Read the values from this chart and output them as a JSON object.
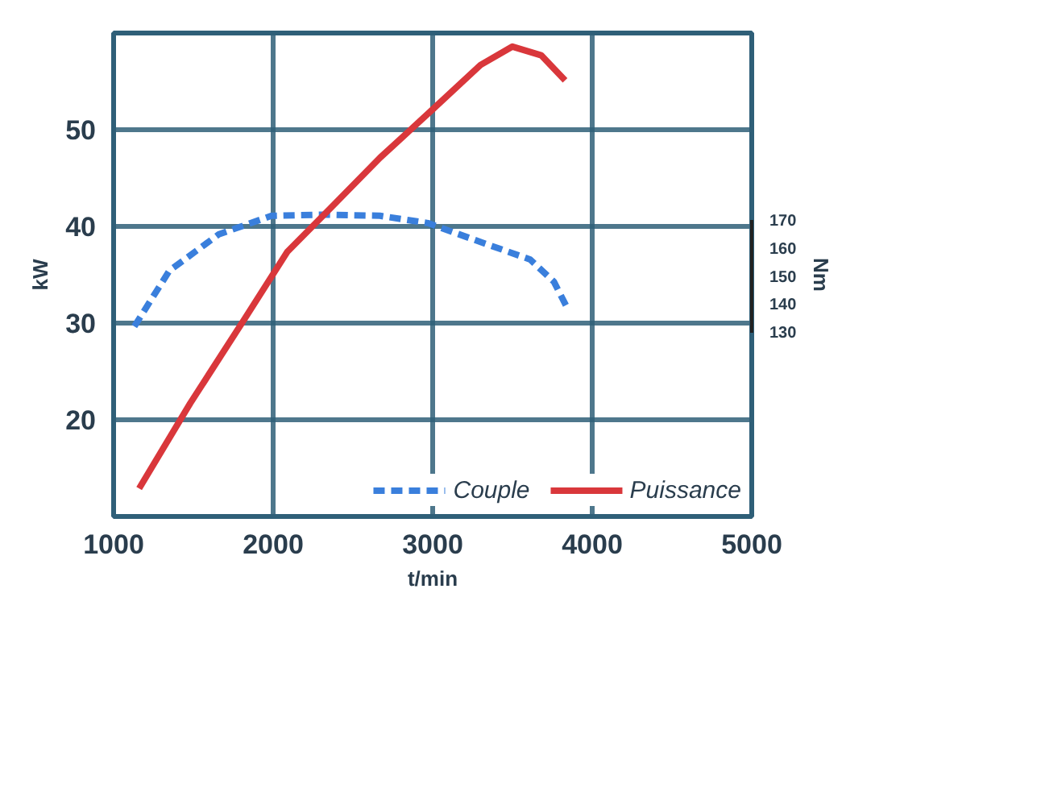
{
  "chart_data": {
    "type": "line",
    "xlabel": "t/min",
    "ylabel": "kW",
    "y2label": "Nm",
    "x": [
      1130,
      1350,
      1660,
      1990,
      2320,
      2670,
      2970,
      3330,
      3610,
      3760,
      3840
    ],
    "xlim": [
      1000,
      5000
    ],
    "xticks": [
      1000,
      2000,
      3000,
      4000,
      5000
    ],
    "ylim": [
      10,
      60
    ],
    "yticks": [
      20,
      30,
      40,
      50
    ],
    "y2lim": [
      64,
      237
    ],
    "y2ticks": [
      130,
      140,
      150,
      160,
      170
    ],
    "grid": true,
    "legend": "bottom",
    "series": [
      {
        "name": "Couple",
        "color": "#3a7fdc",
        "axis": "y2",
        "line_style": "dashed",
        "values": [
          132,
          152,
          165,
          171.6,
          172,
          171.6,
          169,
          161.6,
          156,
          148,
          139
        ]
      },
      {
        "name": "Puissance",
        "color": "#d9373b",
        "line_style": "solid",
        "x": [
          1160,
          1480,
          1820,
          2090,
          2360,
          2670,
          3000,
          3300,
          3500,
          3680,
          3830
        ],
        "values": [
          12.9,
          21.7,
          30.4,
          37.4,
          41.9,
          47.1,
          52.1,
          56.7,
          58.6,
          57.7,
          55.1
        ]
      }
    ]
  }
}
